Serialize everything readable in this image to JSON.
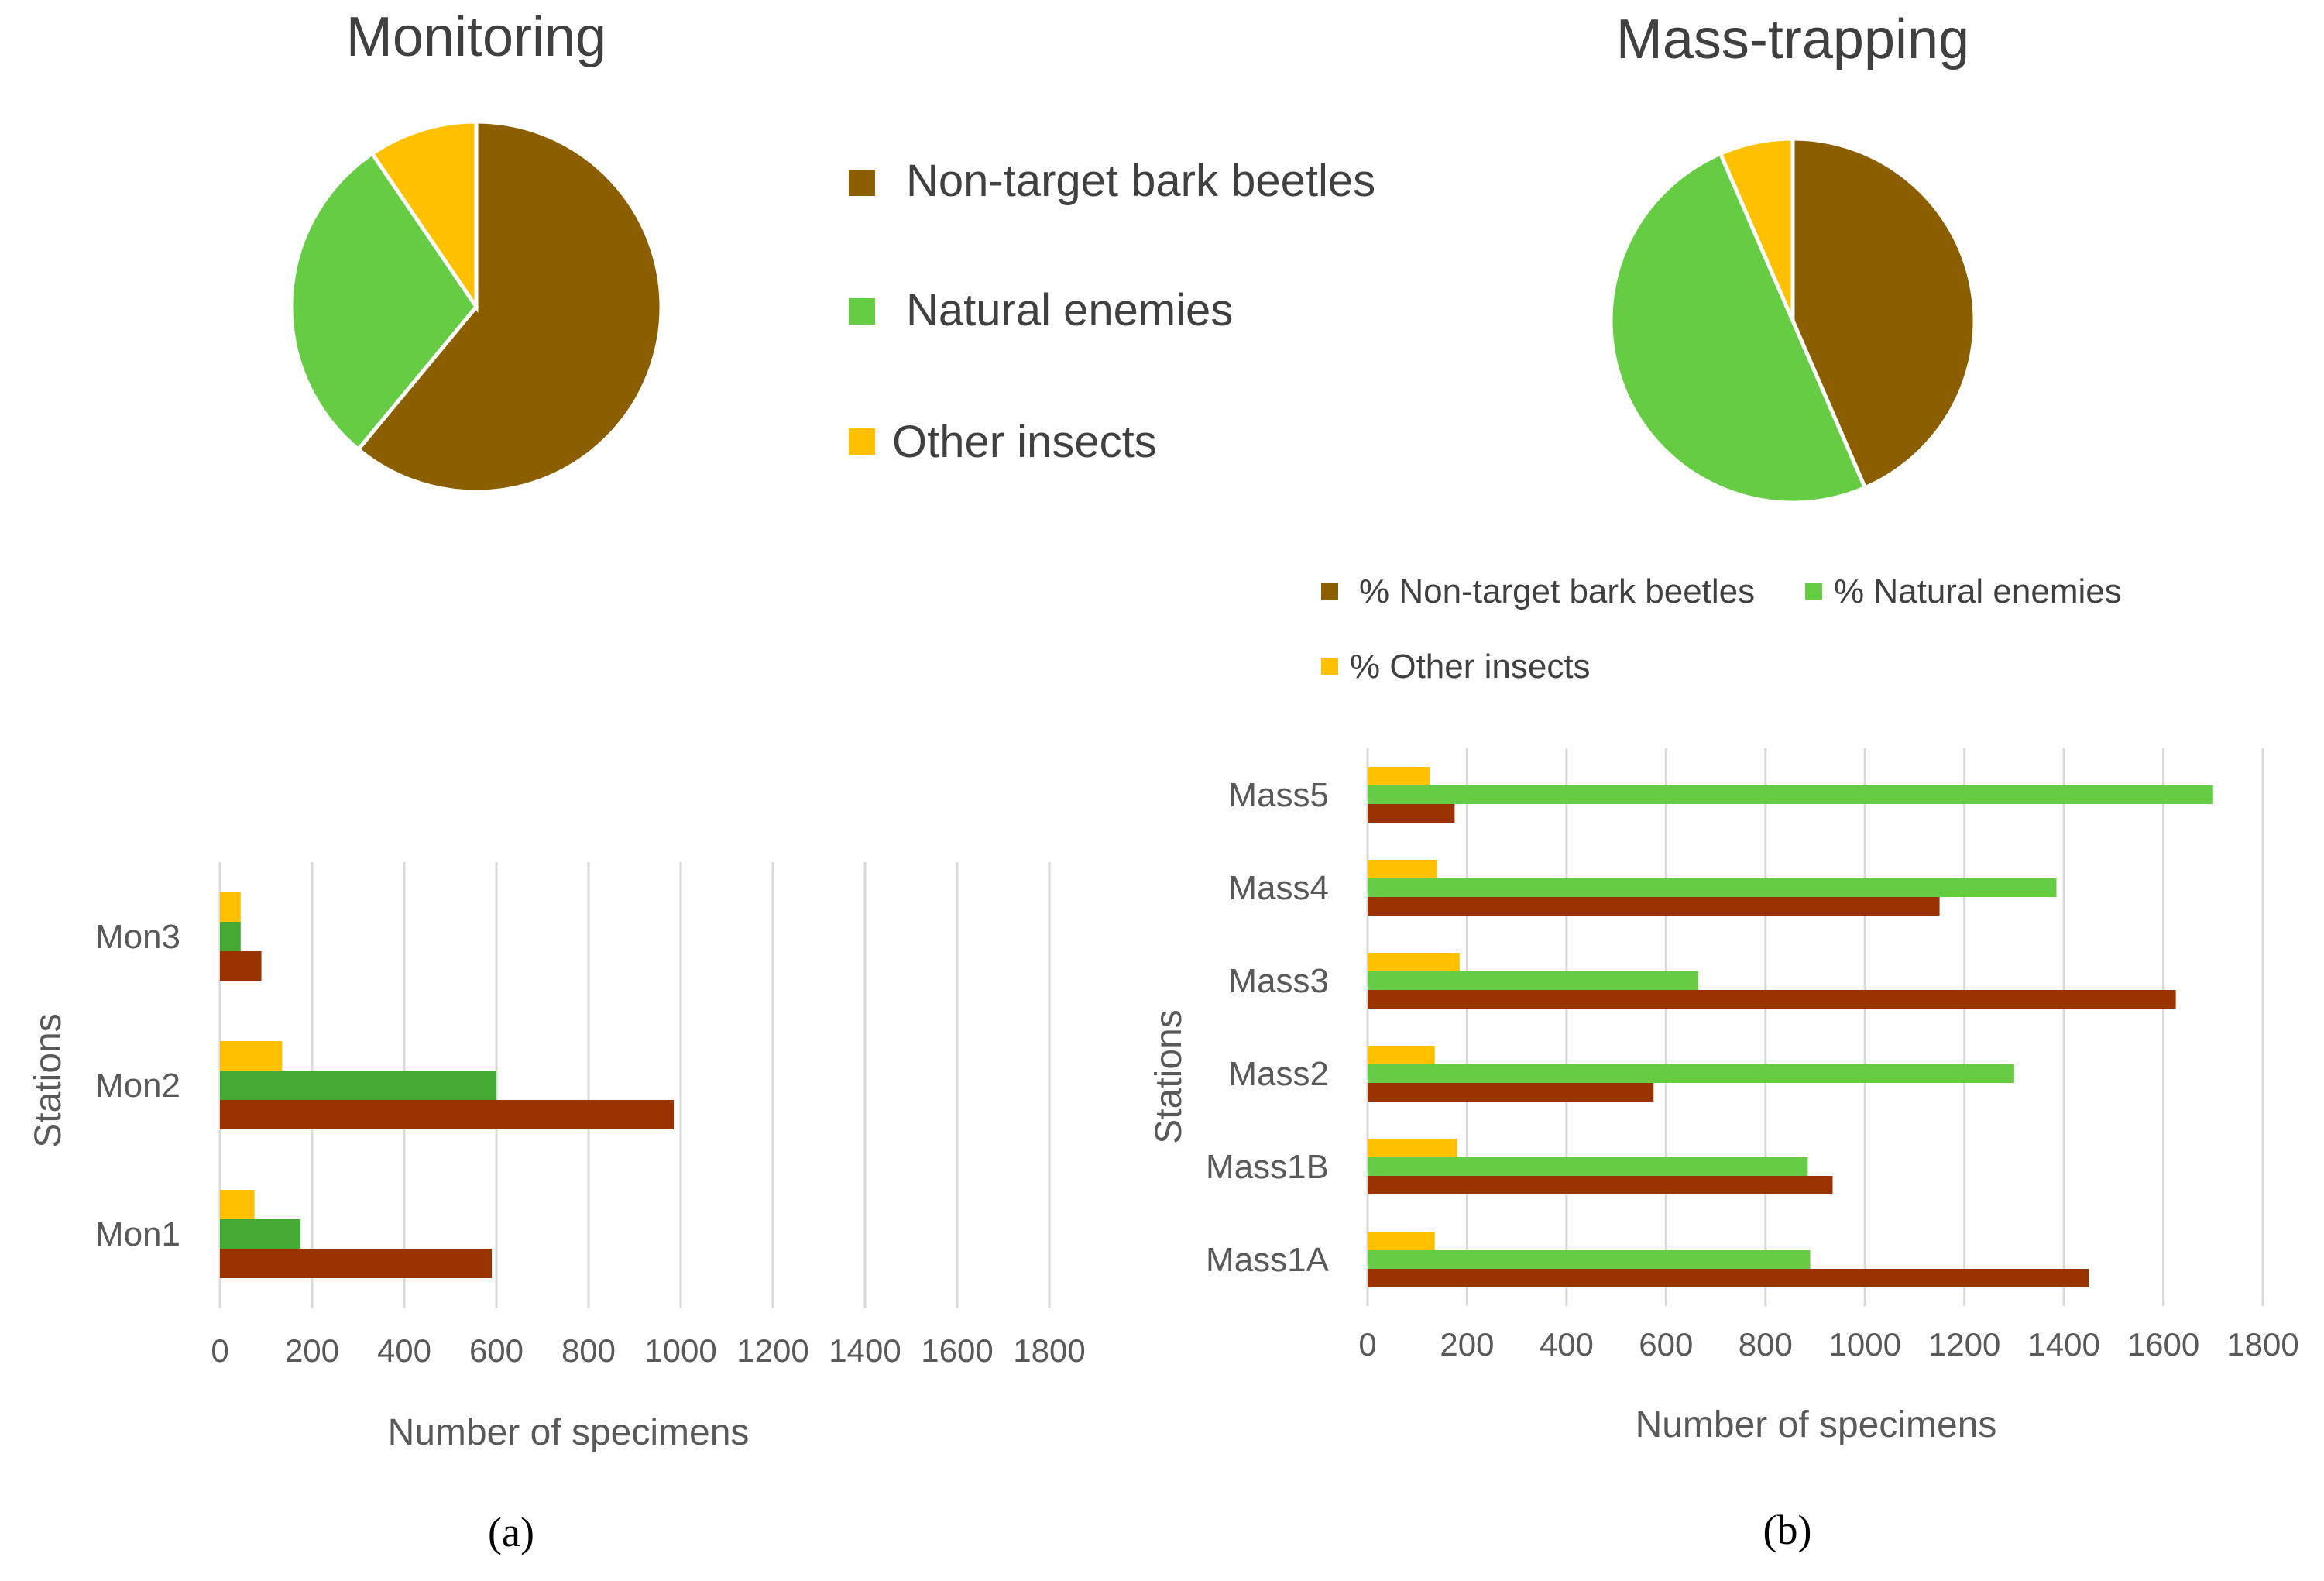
{
  "colors": {
    "non_target": "#8b5e00",
    "natural": "#66cc44",
    "natural_dark": "#44aa33",
    "other": "#ffc000",
    "bar_non_target": "#993300"
  },
  "chart_data": [
    {
      "type": "pie",
      "id": "pie-monitoring",
      "title": "Monitoring",
      "labels": [
        "Non-target bark beetles",
        "Natural enemies",
        "Other insects"
      ],
      "values": [
        61,
        29.5,
        9.5
      ]
    },
    {
      "type": "pie",
      "id": "pie-mass",
      "title": "Mass-trapping",
      "labels": [
        "Non-target bark beetles",
        "Natural enemies",
        "Other insects"
      ],
      "values": [
        43.5,
        50,
        6.5
      ]
    },
    {
      "type": "bar",
      "orientation": "horizontal",
      "id": "bar-monitoring",
      "panel_label": "(a)",
      "categories": [
        "Mon1",
        "Mon2",
        "Mon3"
      ],
      "series": [
        {
          "name": "Non-target bark beetles",
          "values": [
            590,
            985,
            90
          ]
        },
        {
          "name": "Natural enemies",
          "values": [
            175,
            600,
            45
          ]
        },
        {
          "name": "Other insects",
          "values": [
            75,
            135,
            45
          ]
        }
      ],
      "xlabel": "Number of specimens",
      "ylabel": "Stations",
      "xlim": [
        0,
        1800
      ],
      "xticks": [
        "0",
        "200",
        "400",
        "600",
        "800",
        "1000",
        "1200",
        "1400",
        "1600",
        "1800"
      ],
      "grid": true
    },
    {
      "type": "bar",
      "orientation": "horizontal",
      "id": "bar-mass",
      "panel_label": "(b)",
      "categories": [
        "Mass1A",
        "Mass1B",
        "Mass2",
        "Mass3",
        "Mass4",
        "Mass5"
      ],
      "series": [
        {
          "name": "Non-target bark beetles",
          "values": [
            1450,
            935,
            575,
            1625,
            1150,
            175
          ]
        },
        {
          "name": "Natural enemies",
          "values": [
            890,
            885,
            1300,
            665,
            1385,
            1700
          ]
        },
        {
          "name": "Other insects",
          "values": [
            135,
            180,
            135,
            185,
            140,
            125
          ]
        }
      ],
      "xlabel": "Number of specimens",
      "ylabel": "Stations",
      "xlim": [
        0,
        1800
      ],
      "xticks": [
        "0",
        "200",
        "400",
        "600",
        "800",
        "1000",
        "1200",
        "1400",
        "1600",
        "1800"
      ],
      "grid": true
    }
  ],
  "legend_main": [
    {
      "label": "Non-target bark beetles",
      "color_key": "non_target"
    },
    {
      "label": "Natural enemies",
      "color_key": "natural"
    },
    {
      "label": "Other insects",
      "color_key": "other"
    }
  ],
  "legend_pct": [
    {
      "label": "% Non-target bark beetles",
      "color_key": "non_target"
    },
    {
      "label": "% Natural enemies",
      "color_key": "natural"
    },
    {
      "label": "% Other insects",
      "color_key": "other"
    }
  ]
}
